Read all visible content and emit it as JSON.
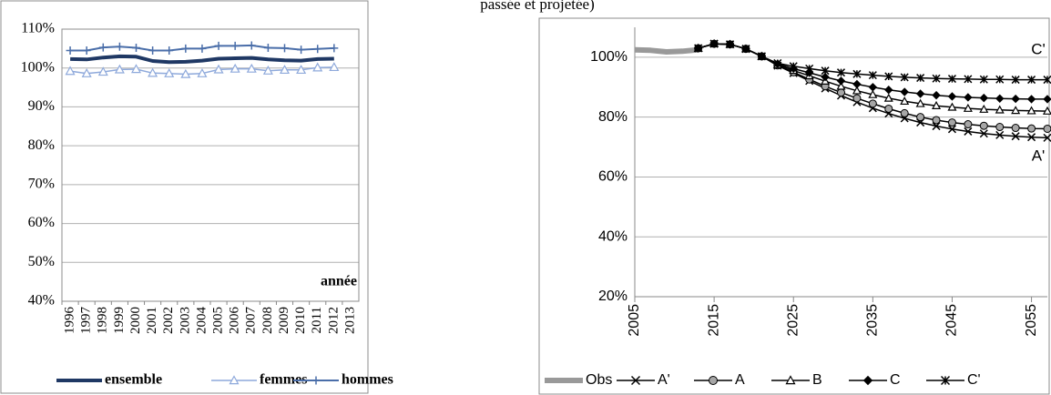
{
  "caption": "passée et projetée)",
  "chart_data": [
    {
      "type": "line",
      "xlabel": "année",
      "categories": [
        "1996",
        "1997",
        "1998",
        "1999",
        "2000",
        "2001",
        "2002",
        "2003",
        "2004",
        "2005",
        "2006",
        "2007",
        "2008",
        "2009",
        "2010",
        "2011",
        "2012",
        "2013"
      ],
      "ylim": [
        40,
        110
      ],
      "yticks": [
        {
          "value": 40,
          "label": "40%"
        },
        {
          "value": 50,
          "label": "50%"
        },
        {
          "value": 60,
          "label": "60%"
        },
        {
          "value": 70,
          "label": "70%"
        },
        {
          "value": 80,
          "label": "80%"
        },
        {
          "value": 90,
          "label": "90%"
        },
        {
          "value": 100,
          "label": "100%"
        },
        {
          "value": 110,
          "label": "110%"
        }
      ],
      "grid": true,
      "series": [
        {
          "name": "ensemble",
          "color": "#1f3864",
          "marker": "none",
          "values": [
            102.3,
            102.2,
            102.7,
            103,
            102.9,
            101.8,
            101.5,
            101.6,
            101.9,
            102.4,
            102.5,
            102.6,
            102.2,
            102.0,
            101.9,
            102.3,
            102.4,
            null
          ]
        },
        {
          "name": "femmes",
          "color": "#8ea9db",
          "marker": "triangle",
          "values": [
            99.2,
            98.6,
            99,
            99.6,
            99.7,
            98.7,
            98.6,
            98.4,
            98.6,
            99.6,
            99.8,
            99.8,
            99.3,
            99.5,
            99.5,
            100.1,
            100.2,
            null
          ]
        },
        {
          "name": "hommes",
          "color": "#4a6ea9",
          "marker": "plus",
          "values": [
            104.5,
            104.5,
            105.3,
            105.5,
            105.2,
            104.5,
            104.5,
            105,
            105,
            105.7,
            105.7,
            105.8,
            105.2,
            105.1,
            104.7,
            104.9,
            105.1,
            null
          ]
        }
      ]
    },
    {
      "type": "line",
      "xlim": [
        2005,
        2057
      ],
      "xticks": [
        2005,
        2015,
        2025,
        2035,
        2045,
        2055
      ],
      "ylim": [
        20,
        110
      ],
      "yticks": [
        {
          "value": 20,
          "label": "20%"
        },
        {
          "value": 40,
          "label": "40%"
        },
        {
          "value": 60,
          "label": "60%"
        },
        {
          "value": 80,
          "label": "80%"
        },
        {
          "value": 100,
          "label": "100%"
        }
      ],
      "grid": true,
      "annotations": [
        "C'",
        "A'"
      ],
      "series": [
        {
          "name": "Obs",
          "color": "#999999",
          "marker": "none",
          "x": [
            2005,
            2007,
            2009,
            2011,
            2013
          ],
          "values": [
            102.5,
            102.3,
            101.8,
            102,
            102.5
          ]
        },
        {
          "name": "A'",
          "color": "#000000",
          "marker": "x",
          "x": [
            2013,
            2015,
            2017,
            2019,
            2021,
            2023,
            2025,
            2027,
            2029,
            2031,
            2033,
            2035,
            2037,
            2039,
            2041,
            2043,
            2045,
            2047,
            2049,
            2051,
            2053,
            2055,
            2057
          ],
          "values": [
            103,
            104.5,
            104.3,
            102.8,
            100.3,
            97.2,
            94.7,
            92.1,
            89.6,
            87.2,
            85,
            83,
            81.2,
            79.6,
            78.2,
            77,
            76,
            75.2,
            74.5,
            74,
            73.6,
            73.3,
            73.1
          ]
        },
        {
          "name": "A",
          "color": "#000000",
          "marker": "circle",
          "x": [
            2013,
            2015,
            2017,
            2019,
            2021,
            2023,
            2025,
            2027,
            2029,
            2031,
            2033,
            2035,
            2037,
            2039,
            2041,
            2043,
            2045,
            2047,
            2049,
            2051,
            2053,
            2055,
            2057
          ],
          "values": [
            103,
            104.5,
            104.3,
            102.8,
            100.3,
            97.3,
            95,
            92.6,
            90.3,
            88.2,
            86.3,
            84.5,
            82.8,
            81.3,
            80,
            79,
            78.2,
            77.6,
            77.1,
            76.7,
            76.4,
            76.2,
            76.1
          ]
        },
        {
          "name": "B",
          "color": "#000000",
          "marker": "triangle",
          "x": [
            2013,
            2015,
            2017,
            2019,
            2021,
            2023,
            2025,
            2027,
            2029,
            2031,
            2033,
            2035,
            2037,
            2039,
            2041,
            2043,
            2045,
            2047,
            2049,
            2051,
            2053,
            2055,
            2057
          ],
          "values": [
            103,
            104.5,
            104.3,
            102.8,
            100.3,
            97.5,
            95.6,
            93.8,
            92,
            90.3,
            88.8,
            87.5,
            86.3,
            85.3,
            84.5,
            83.8,
            83.3,
            82.9,
            82.6,
            82.4,
            82.2,
            82.1,
            82
          ]
        },
        {
          "name": "C",
          "color": "#000000",
          "marker": "diamond",
          "x": [
            2013,
            2015,
            2017,
            2019,
            2021,
            2023,
            2025,
            2027,
            2029,
            2031,
            2033,
            2035,
            2037,
            2039,
            2041,
            2043,
            2045,
            2047,
            2049,
            2051,
            2053,
            2055,
            2057
          ],
          "values": [
            103,
            104.5,
            104.3,
            102.8,
            100.3,
            97.8,
            96.2,
            94.8,
            93.4,
            92.1,
            91,
            90,
            89.1,
            88.4,
            87.8,
            87.3,
            86.9,
            86.6,
            86.4,
            86.2,
            86.1,
            86,
            86
          ]
        },
        {
          "name": "C'",
          "color": "#000000",
          "marker": "asterisk",
          "x": [
            2013,
            2015,
            2017,
            2019,
            2021,
            2023,
            2025,
            2027,
            2029,
            2031,
            2033,
            2035,
            2037,
            2039,
            2041,
            2043,
            2045,
            2047,
            2049,
            2051,
            2053,
            2055,
            2057
          ],
          "values": [
            103,
            104.5,
            104.3,
            102.8,
            100.3,
            98,
            97,
            96.2,
            95.5,
            94.9,
            94.4,
            94,
            93.6,
            93.3,
            93.1,
            92.9,
            92.8,
            92.7,
            92.6,
            92.6,
            92.5,
            92.5,
            92.5
          ]
        }
      ]
    }
  ]
}
